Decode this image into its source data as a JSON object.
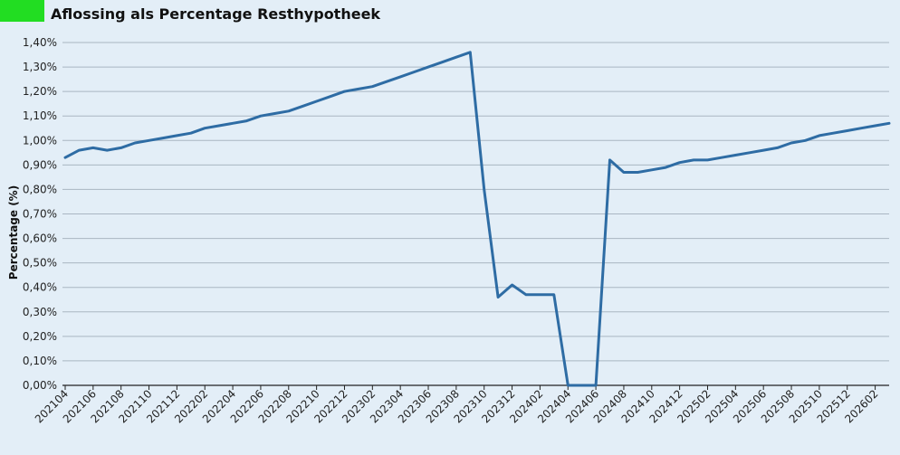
{
  "header": {
    "title": "Aflossing als Percentage Resthypotheek",
    "accent_color": "#22dd22"
  },
  "chart_data": {
    "type": "line",
    "title": "Aflossing als Percentage Resthypotheek",
    "xlabel": "",
    "ylabel": "Percentage (%)",
    "ylim": [
      0,
      1.4
    ],
    "yticks": [
      "0,00%",
      "0,10%",
      "0,20%",
      "0,30%",
      "0,40%",
      "0,50%",
      "0,60%",
      "0,70%",
      "0,80%",
      "0,90%",
      "1,00%",
      "1,10%",
      "1,20%",
      "1,30%",
      "1,40%"
    ],
    "xtick_labels": [
      "202104",
      "202106",
      "202108",
      "202110",
      "202112",
      "202202",
      "202204",
      "202206",
      "202208",
      "202210",
      "202212",
      "202302",
      "202304",
      "202306",
      "202308",
      "202310",
      "202312",
      "202402",
      "202404",
      "202406",
      "202408",
      "202410",
      "202412",
      "202502",
      "202504",
      "202506",
      "202508",
      "202510",
      "202512",
      "202602"
    ],
    "grid": true,
    "line_color": "#2e6ca4",
    "series": [
      {
        "x": [
          "202104",
          "202105",
          "202106",
          "202107",
          "202108",
          "202109",
          "202110",
          "202111",
          "202112",
          "202201",
          "202202",
          "202203",
          "202204",
          "202205",
          "202206",
          "202207",
          "202208",
          "202209",
          "202210",
          "202211",
          "202212",
          "202301",
          "202302",
          "202303",
          "202304",
          "202305",
          "202306",
          "202307",
          "202308",
          "202309",
          "202310",
          "202311",
          "202312",
          "202401",
          "202402",
          "202403",
          "202404",
          "202405",
          "202406",
          "202407",
          "202408",
          "202409",
          "202410",
          "202411",
          "202412",
          "202501",
          "202502",
          "202503",
          "202504",
          "202505",
          "202506",
          "202507",
          "202508",
          "202509",
          "202510",
          "202511",
          "202512",
          "202601",
          "202602",
          "202603"
        ],
        "values": [
          0.93,
          0.96,
          0.97,
          0.96,
          0.97,
          0.99,
          1.0,
          1.01,
          1.02,
          1.03,
          1.05,
          1.06,
          1.07,
          1.08,
          1.1,
          1.11,
          1.12,
          1.14,
          1.16,
          1.18,
          1.2,
          1.21,
          1.22,
          1.24,
          1.26,
          1.28,
          1.3,
          1.32,
          1.34,
          1.36,
          0.8,
          0.36,
          0.41,
          0.37,
          0.37,
          0.37,
          0.0,
          0.0,
          0.0,
          0.92,
          0.87,
          0.87,
          0.88,
          0.89,
          0.91,
          0.92,
          0.92,
          0.93,
          0.94,
          0.95,
          0.96,
          0.97,
          0.99,
          1.0,
          1.02,
          1.03,
          1.04,
          1.05,
          1.06,
          1.07
        ]
      }
    ]
  }
}
